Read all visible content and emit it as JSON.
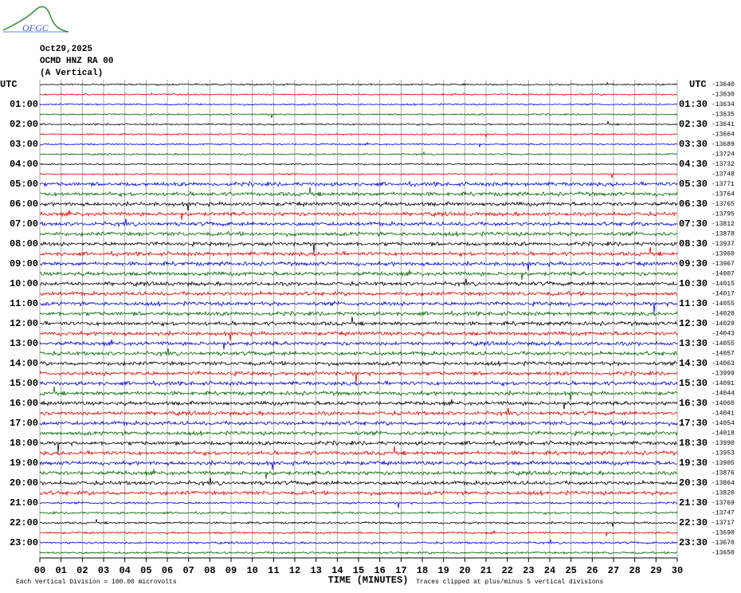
{
  "logo": "OFGC",
  "header": {
    "date": "Oct29,2025",
    "station": "OCMD HNZ RA 00",
    "component": "(A Vertical)"
  },
  "left_labels": [
    "UTC",
    "01:00",
    "02:00",
    "03:00",
    "04:00",
    "05:00",
    "06:00",
    "07:00",
    "08:00",
    "09:00",
    "10:00",
    "11:00",
    "12:00",
    "13:00",
    "14:00",
    "15:00",
    "16:00",
    "17:00",
    "18:00",
    "19:00",
    "20:00",
    "21:00",
    "22:00",
    "23:00"
  ],
  "right_labels": [
    "UTC",
    "01:30",
    "02:30",
    "03:30",
    "04:30",
    "05:30",
    "06:30",
    "07:30",
    "08:30",
    "09:30",
    "10:30",
    "11:30",
    "12:30",
    "13:30",
    "14:30",
    "15:30",
    "16:30",
    "17:30",
    "18:30",
    "19:30",
    "20:30",
    "21:30",
    "22:30",
    "23:30"
  ],
  "offsets": [
    -13640,
    -13630,
    -13634,
    -13635,
    -13641,
    -13664,
    -13689,
    -13724,
    -13732,
    -13748,
    -13771,
    -13764,
    -13765,
    -13795,
    -13812,
    -13878,
    -13937,
    -13960,
    -13967,
    -14007,
    -14015,
    -14017,
    -14055,
    -14020,
    -14029,
    -14043,
    -14055,
    -14057,
    -14063,
    -13999,
    -14091,
    -14044,
    -14060,
    -14041,
    -14054,
    -14018,
    -13990,
    -13953,
    -13905,
    -13876,
    -13864,
    -13820,
    -13769,
    -13747,
    -13717,
    -13690,
    -13670,
    -13650
  ],
  "x_ticks": [
    "00",
    "01",
    "02",
    "03",
    "04",
    "05",
    "06",
    "07",
    "08",
    "09",
    "10",
    "11",
    "12",
    "13",
    "14",
    "15",
    "16",
    "17",
    "18",
    "19",
    "20",
    "21",
    "22",
    "23",
    "24",
    "25",
    "26",
    "27",
    "28",
    "29",
    "30"
  ],
  "x_axis_label": "TIME (MINUTES)",
  "footer": {
    "scale": "Each Vertical Division =  100.00 microvolts",
    "clip": "Traces clipped at plus/minus 5 vertical divisions"
  }
}
